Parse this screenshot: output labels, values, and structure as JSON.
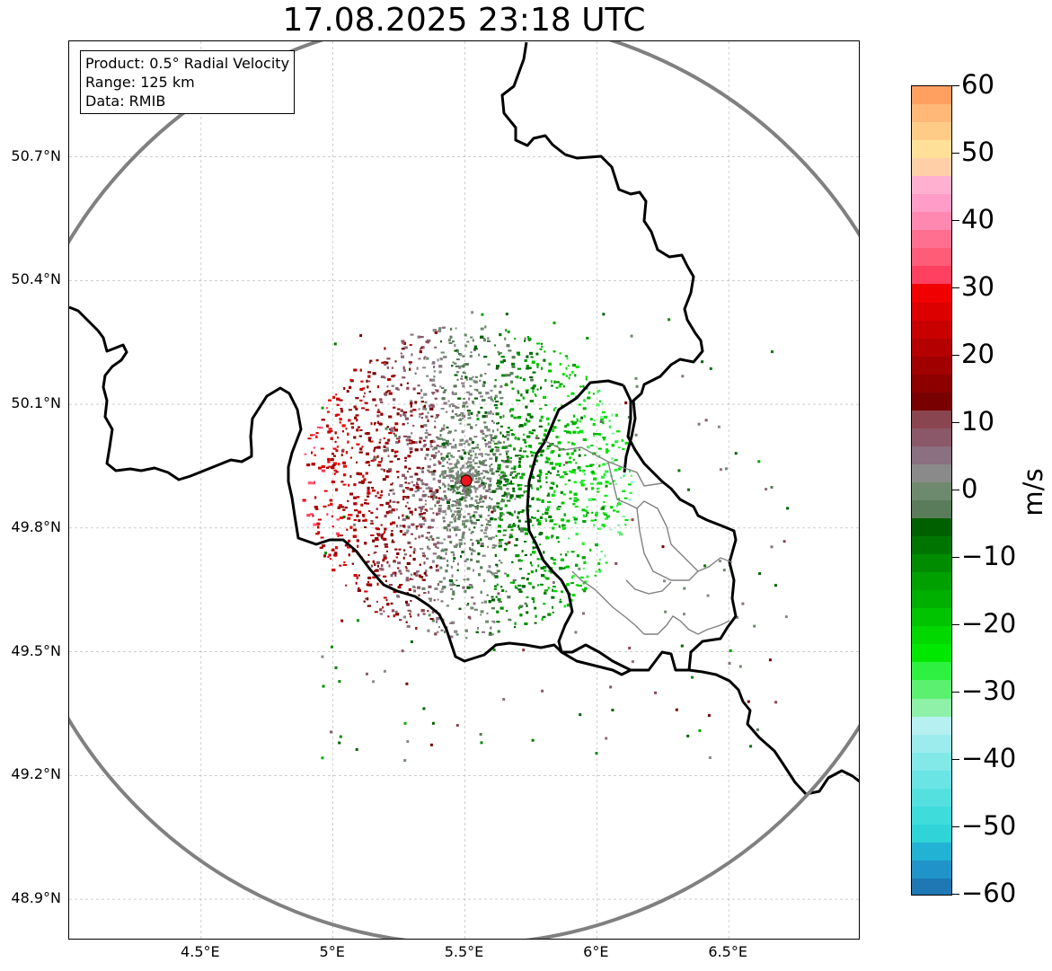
{
  "title": "17.08.2025 23:18 UTC",
  "info_box": {
    "product": "Product: 0.5° Radial Velocity",
    "range": "Range: 125 km",
    "data": "Data: RMIB"
  },
  "map": {
    "lon_range": [
      4.0,
      7.0
    ],
    "lat_range": [
      48.8,
      50.98
    ],
    "x_ticks": [
      {
        "value": 4.5,
        "label": "4.5°E"
      },
      {
        "value": 5.0,
        "label": "5°E"
      },
      {
        "value": 5.5,
        "label": "5.5°E"
      },
      {
        "value": 6.0,
        "label": "6°E"
      },
      {
        "value": 6.5,
        "label": "6.5°E"
      }
    ],
    "y_ticks": [
      {
        "value": 50.7,
        "label": "50.7°N"
      },
      {
        "value": 50.4,
        "label": "50.4°N"
      },
      {
        "value": 50.1,
        "label": "50.1°N"
      },
      {
        "value": 49.8,
        "label": "49.8°N"
      },
      {
        "value": 49.5,
        "label": "49.5°N"
      },
      {
        "value": 49.2,
        "label": "49.2°N"
      },
      {
        "value": 48.9,
        "label": "48.9°N"
      }
    ],
    "radar_site": {
      "lon": 5.505,
      "lat": 49.915,
      "color": "#e8141e"
    },
    "range_ring_km": 125,
    "range_ring_color": "#808080",
    "grid": true
  },
  "colorbar": {
    "unit": "m/s",
    "vmin": -60,
    "vmax": 60,
    "ticks": [
      {
        "value": 60,
        "label": "60"
      },
      {
        "value": 50,
        "label": "50"
      },
      {
        "value": 40,
        "label": "40"
      },
      {
        "value": 30,
        "label": "30"
      },
      {
        "value": 20,
        "label": "20"
      },
      {
        "value": 10,
        "label": "10"
      },
      {
        "value": 0,
        "label": "0"
      },
      {
        "value": -10,
        "label": "−10"
      },
      {
        "value": -20,
        "label": "−20"
      },
      {
        "value": -30,
        "label": "−30"
      },
      {
        "value": -40,
        "label": "−40"
      },
      {
        "value": -50,
        "label": "−50"
      },
      {
        "value": -60,
        "label": "−60"
      }
    ],
    "colors_bottom_to_top": [
      "#1f77b4",
      "#2094c8",
      "#22b2d4",
      "#2ed4d8",
      "#3fdcdc",
      "#55e0e0",
      "#6ae4e4",
      "#82e8e8",
      "#9ceced",
      "#b6f0f0",
      "#8ff0a8",
      "#5cf070",
      "#2ef040",
      "#00e800",
      "#00d800",
      "#00c400",
      "#00b000",
      "#00a000",
      "#008c00",
      "#007400",
      "#006000",
      "#5a7c5a",
      "#6e8a6e",
      "#8a8a8a",
      "#8a7080",
      "#8a5868",
      "#8a4650",
      "#780000",
      "#8c0000",
      "#a00000",
      "#b40000",
      "#c80000",
      "#dc0000",
      "#f00000",
      "#ff4060",
      "#ff5c78",
      "#ff7090",
      "#ff88b0",
      "#ff9cc8",
      "#ffb0d0",
      "#ffd0a8",
      "#ffe098",
      "#ffcc88",
      "#ffb878",
      "#ffa060"
    ]
  }
}
